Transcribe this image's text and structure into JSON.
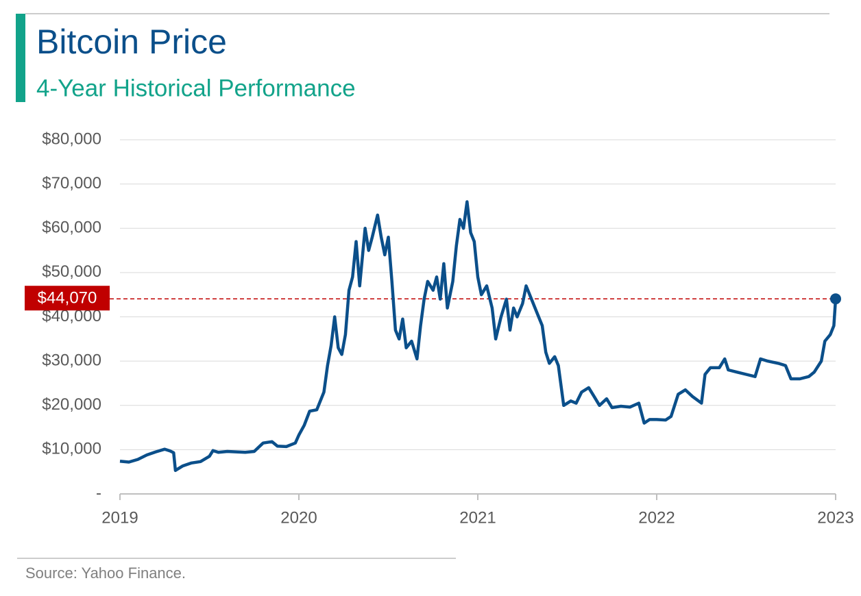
{
  "chart_data": {
    "type": "line",
    "title": "Bitcoin Price",
    "subtitle": "4-Year Historical Performance",
    "source": "Source: Yahoo Finance.",
    "x": [
      2019.0,
      2019.05,
      2019.1,
      2019.15,
      2019.2,
      2019.25,
      2019.28,
      2019.3,
      2019.31,
      2019.35,
      2019.4,
      2019.45,
      2019.5,
      2019.52,
      2019.55,
      2019.6,
      2019.65,
      2019.7,
      2019.75,
      2019.8,
      2019.85,
      2019.88,
      2019.93,
      2019.98,
      2020.0,
      2020.03,
      2020.06,
      2020.1,
      2020.14,
      2020.16,
      2020.18,
      2020.2,
      2020.22,
      2020.24,
      2020.26,
      2020.28,
      2020.3,
      2020.32,
      2020.34,
      2020.37,
      2020.39,
      2020.41,
      2020.44,
      2020.46,
      2020.48,
      2020.5,
      2020.52,
      2020.54,
      2020.56,
      2020.58,
      2020.6,
      2020.63,
      2020.66,
      2020.68,
      2020.7,
      2020.72,
      2020.75,
      2020.77,
      2020.79,
      2020.81,
      2020.83,
      2020.86,
      2020.88,
      2020.9,
      2020.92,
      2020.94,
      2020.96,
      2020.98,
      2021.0,
      2021.02,
      2021.05,
      2021.08,
      2021.1,
      2021.13,
      2021.16,
      2021.18,
      2021.2,
      2021.22,
      2021.25,
      2021.27,
      2021.3,
      2021.33,
      2021.36,
      2021.38,
      2021.4,
      2021.43,
      2021.45,
      2021.48,
      2021.52,
      2021.55,
      2021.58,
      2021.62,
      2021.65,
      2021.68,
      2021.72,
      2021.75,
      2021.8,
      2021.85,
      2021.9,
      2021.93,
      2021.96,
      2022.0,
      2022.05,
      2022.08,
      2022.12,
      2022.16,
      2022.2,
      2022.25,
      2022.27,
      2022.3,
      2022.35,
      2022.38,
      2022.4,
      2022.45,
      2022.5,
      2022.55,
      2022.58,
      2022.62,
      2022.68,
      2022.72,
      2022.75,
      2022.8,
      2022.85,
      2022.88,
      2022.92,
      2022.94,
      2022.97,
      2022.99,
      2023.0
    ],
    "series": [
      {
        "name": "Bitcoin",
        "color": "#0b4f8a",
        "values": [
          7400,
          7200,
          7800,
          8800,
          9500,
          10100,
          9700,
          9300,
          5300,
          6300,
          7000,
          7300,
          8500,
          9800,
          9400,
          9600,
          9500,
          9400,
          9600,
          11500,
          11800,
          10800,
          10700,
          11500,
          13300,
          15500,
          18700,
          19000,
          23000,
          29000,
          33500,
          40000,
          33000,
          31500,
          36000,
          46000,
          49000,
          57000,
          47000,
          60000,
          55000,
          58000,
          63000,
          58000,
          54000,
          58000,
          48000,
          37000,
          35000,
          39500,
          33000,
          34500,
          30500,
          38000,
          44000,
          48000,
          46000,
          49000,
          44000,
          52000,
          42000,
          48000,
          56000,
          62000,
          60000,
          66000,
          59000,
          57000,
          49000,
          45000,
          47000,
          42000,
          35000,
          40000,
          44000,
          37000,
          42000,
          40000,
          43000,
          47000,
          44000,
          41000,
          38000,
          32000,
          29500,
          31000,
          29000,
          20000,
          21000,
          20500,
          23000,
          24000,
          22000,
          20000,
          21500,
          19500,
          19800,
          19600,
          20500,
          16000,
          16800,
          16800,
          16700,
          17500,
          22500,
          23500,
          22000,
          20500,
          27000,
          28500,
          28500,
          30500,
          28000,
          27500,
          27000,
          26500,
          30500,
          30000,
          29500,
          29000,
          26000,
          26000,
          26500,
          27500,
          30000,
          34500,
          36000,
          38000,
          44070
        ]
      }
    ],
    "reference": {
      "value": 44070,
      "label": "$44,070",
      "color": "#c00000"
    },
    "xlim": [
      2019,
      2023
    ],
    "xticks": [
      2019,
      2020,
      2021,
      2022,
      2023
    ],
    "ylim": [
      0,
      80000
    ],
    "yticks": [
      {
        "value": 0,
        "label": "-"
      },
      {
        "value": 10000,
        "label": "$10,000"
      },
      {
        "value": 20000,
        "label": "$20,000"
      },
      {
        "value": 30000,
        "label": "$30,000"
      },
      {
        "value": 40000,
        "label": "$40,000"
      },
      {
        "value": 50000,
        "label": "$50,000"
      },
      {
        "value": 60000,
        "label": "$60,000"
      },
      {
        "value": 70000,
        "label": "$70,000"
      },
      {
        "value": 80000,
        "label": "$80,000"
      }
    ],
    "grid": true
  }
}
